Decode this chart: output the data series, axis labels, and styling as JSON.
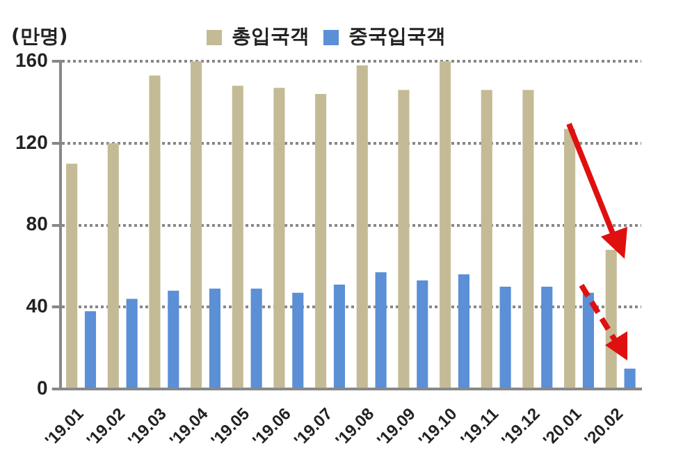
{
  "chart_data": {
    "type": "bar",
    "ylabel": "(만명)",
    "categories": [
      "'19.01",
      "'19.02",
      "'19.03",
      "'19.04",
      "'19.05",
      "'19.06",
      "'19.07",
      "'19.08",
      "'19.09",
      "'19.10",
      "'19.11",
      "'19.12",
      "'20.01",
      "'20.02"
    ],
    "series": [
      {
        "name": "총입국객",
        "color": "#c4bb96",
        "values": [
          110,
          120,
          153,
          160,
          148,
          147,
          144,
          158,
          146,
          160,
          146,
          146,
          127,
          68
        ]
      },
      {
        "name": "중국입국객",
        "color": "#5b8fd6",
        "values": [
          38,
          44,
          48,
          49,
          49,
          47,
          51,
          57,
          53,
          56,
          50,
          50,
          47,
          10
        ]
      }
    ],
    "ylim": [
      0,
      160
    ],
    "yticks": [
      0,
      40,
      80,
      120,
      160
    ],
    "grid": "y",
    "legend": "top"
  }
}
